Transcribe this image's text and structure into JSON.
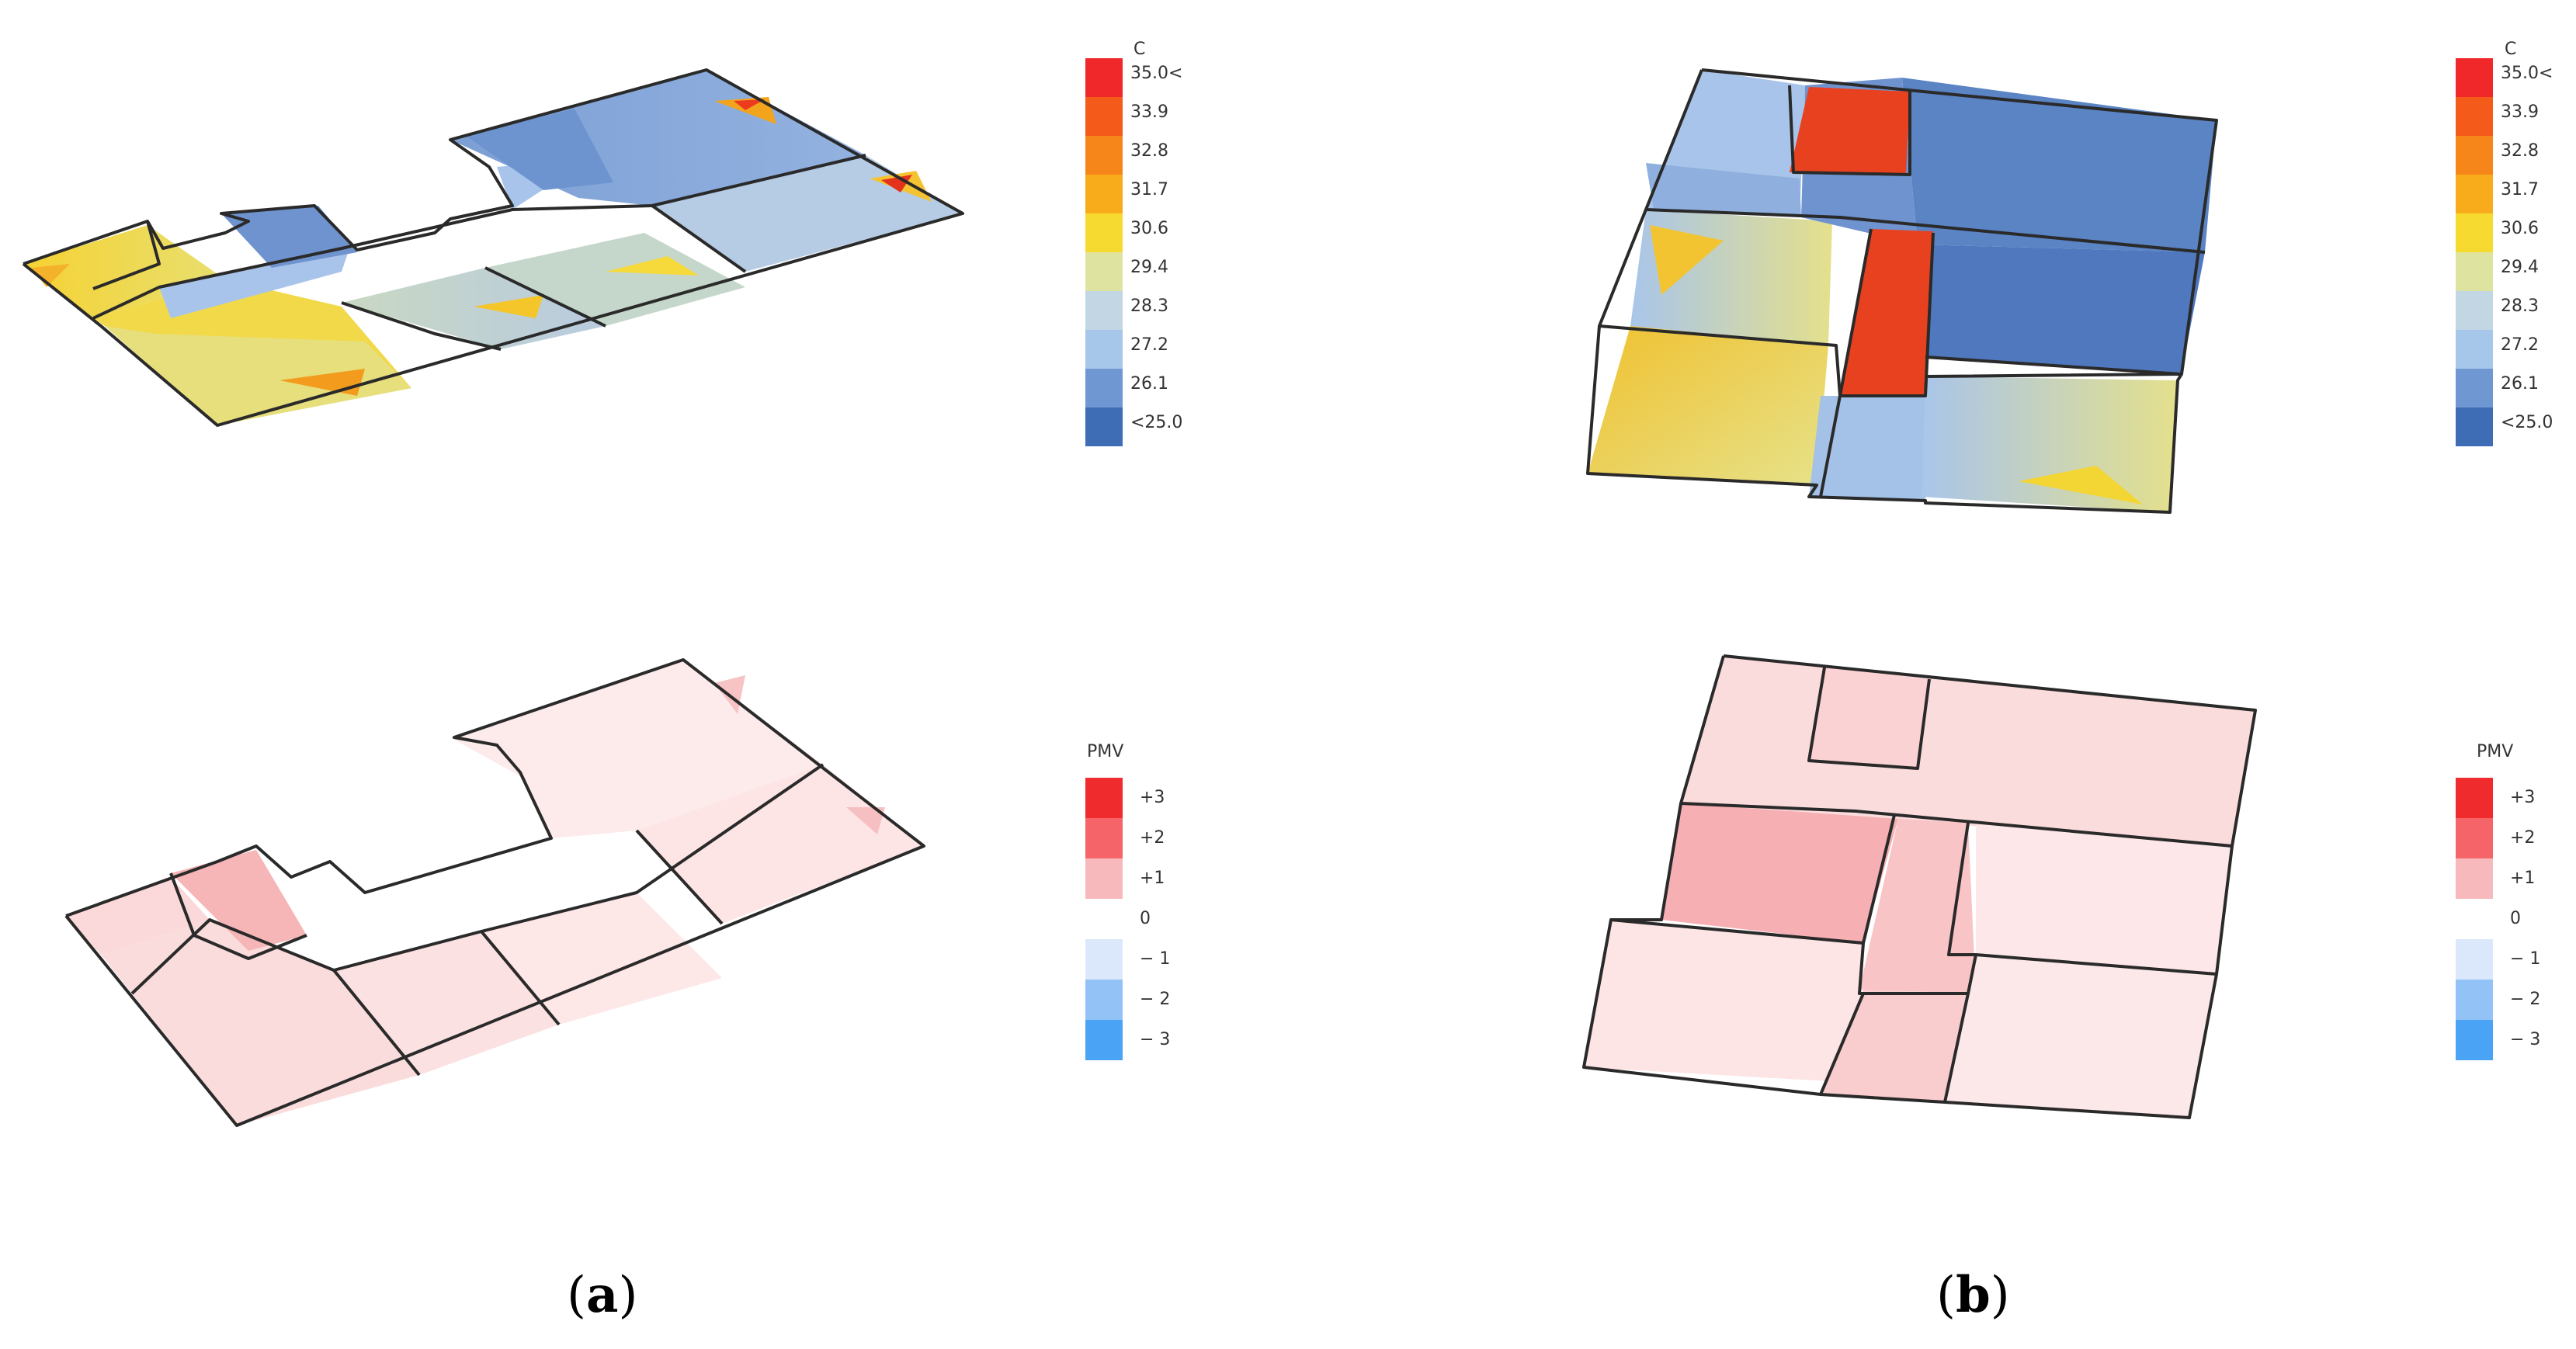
{
  "temperature_legend": {
    "unit": "C",
    "labels": [
      "35.0<",
      "33.9",
      "32.8",
      "31.7",
      "30.6",
      "29.4",
      "28.3",
      "27.2",
      "26.1",
      "<25.0"
    ],
    "colors": [
      "#f0282a",
      "#f45a1a",
      "#f7861a",
      "#f8ac1c",
      "#f7da30",
      "#dfe3a0",
      "#c3d6e3",
      "#a6c6ea",
      "#6f98d2",
      "#3e6db6"
    ]
  },
  "pmv_legend": {
    "title": "PMV",
    "labels": [
      "+3",
      "+2",
      "+1",
      "0",
      "− 1",
      "− 2",
      "− 3"
    ],
    "colors": [
      "#ef2b2e",
      "#f46468",
      "#f8b9bc",
      "#ffffff",
      "#dbe8fb",
      "#93c2f6",
      "#4aa3f5"
    ]
  },
  "captions": {
    "a": {
      "open": "(",
      "letter": "a",
      "close": ")"
    },
    "b": {
      "open": "(",
      "letter": "b",
      "close": ")"
    }
  },
  "colors": {
    "wall": "#2a2a2a",
    "hot_core": "#e8411f",
    "cool_room": "#5a84c4",
    "pmv_room": "#fbe1e1",
    "pmv_room_dark": "#f6b5b6"
  }
}
